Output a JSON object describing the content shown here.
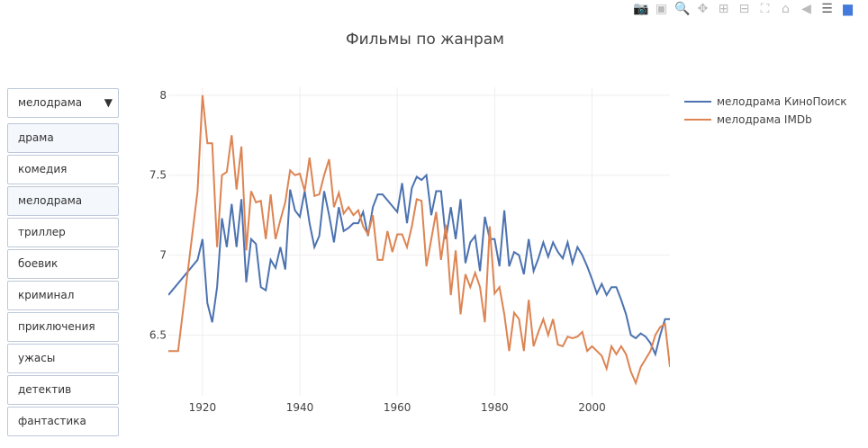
{
  "modebar": {
    "icons": [
      "camera-icon",
      "save-icon",
      "zoom-icon",
      "pan-icon",
      "zoom-in-icon",
      "zoom-out-icon",
      "autoscale-icon",
      "home-icon",
      "spike-lines-icon",
      "compare-hover-icon",
      "plotly-logo-icon"
    ]
  },
  "dropdown": {
    "selected": "мелодрама",
    "items": [
      {
        "label": "драма",
        "active": true
      },
      {
        "label": "комедия",
        "active": false
      },
      {
        "label": "мелодрама",
        "active": true
      },
      {
        "label": "триллер",
        "active": false
      },
      {
        "label": "боевик",
        "active": false
      },
      {
        "label": "криминал",
        "active": false
      },
      {
        "label": "приключения",
        "active": false
      },
      {
        "label": "ужасы",
        "active": false
      },
      {
        "label": "детектив",
        "active": false
      },
      {
        "label": "фантастика",
        "active": false
      }
    ]
  },
  "chart_data": {
    "type": "line",
    "title": "Фильмы по жанрам",
    "xlim": [
      1913,
      2016
    ],
    "ylim": [
      6.12,
      8.05
    ],
    "xticks": [
      1920,
      1940,
      1960,
      1980,
      2000
    ],
    "yticks": [
      6.5,
      7,
      7.5,
      8
    ],
    "grid": true,
    "legend_position": "top-right",
    "series": [
      {
        "name": "мелодрама КиноПоиск",
        "color": "#4C72B0",
        "x": [
          1913,
          1919,
          1920,
          1921,
          1922,
          1923,
          1924,
          1925,
          1926,
          1927,
          1928,
          1929,
          1930,
          1931,
          1932,
          1933,
          1934,
          1935,
          1936,
          1937,
          1938,
          1939,
          1940,
          1941,
          1942,
          1943,
          1944,
          1945,
          1946,
          1947,
          1948,
          1949,
          1950,
          1951,
          1952,
          1953,
          1954,
          1955,
          1956,
          1957,
          1960,
          1961,
          1962,
          1963,
          1964,
          1965,
          1966,
          1967,
          1968,
          1969,
          1970,
          1971,
          1972,
          1973,
          1974,
          1975,
          1976,
          1977,
          1978,
          1979,
          1980,
          1981,
          1982,
          1983,
          1984,
          1985,
          1986,
          1987,
          1988,
          1989,
          1990,
          1991,
          1992,
          1993,
          1994,
          1995,
          1996,
          1997,
          1998,
          1999,
          2000,
          2001,
          2002,
          2003,
          2004,
          2005,
          2006,
          2007,
          2008,
          2009,
          2010,
          2011,
          2012,
          2013,
          2014,
          2015,
          2016
        ],
        "y": [
          6.75,
          6.97,
          7.1,
          6.7,
          6.58,
          6.8,
          7.23,
          7.05,
          7.32,
          7.05,
          7.35,
          6.83,
          7.1,
          7.07,
          6.8,
          6.78,
          6.97,
          6.92,
          7.05,
          6.91,
          7.41,
          7.28,
          7.24,
          7.4,
          7.2,
          7.05,
          7.12,
          7.4,
          7.25,
          7.08,
          7.3,
          7.15,
          7.17,
          7.2,
          7.2,
          7.27,
          7.12,
          7.3,
          7.38,
          7.38,
          7.27,
          7.45,
          7.2,
          7.42,
          7.49,
          7.47,
          7.5,
          7.25,
          7.4,
          7.4,
          7.1,
          7.3,
          7.1,
          7.35,
          6.95,
          7.08,
          7.12,
          6.9,
          7.24,
          7.1,
          7.1,
          6.93,
          7.28,
          6.93,
          7.02,
          7.0,
          6.88,
          7.1,
          6.9,
          6.98,
          7.08,
          6.99,
          7.08,
          7.02,
          6.98,
          7.08,
          6.95,
          7.05,
          7.0,
          6.93,
          6.85,
          6.76,
          6.82,
          6.75,
          6.8,
          6.8,
          6.72,
          6.63,
          6.5,
          6.48,
          6.51,
          6.49,
          6.45,
          6.38,
          6.5,
          6.6,
          6.6
        ]
      },
      {
        "name": "мелодрама IMDb",
        "color": "#DD8452",
        "x": [
          1913,
          1915,
          1919,
          1920,
          1921,
          1922,
          1923,
          1924,
          1925,
          1926,
          1927,
          1928,
          1929,
          1930,
          1931,
          1932,
          1933,
          1934,
          1935,
          1936,
          1937,
          1938,
          1939,
          1940,
          1941,
          1942,
          1943,
          1944,
          1945,
          1946,
          1947,
          1948,
          1949,
          1950,
          1951,
          1952,
          1953,
          1954,
          1955,
          1956,
          1957,
          1958,
          1959,
          1960,
          1961,
          1962,
          1963,
          1964,
          1965,
          1966,
          1967,
          1968,
          1969,
          1970,
          1971,
          1972,
          1973,
          1974,
          1975,
          1976,
          1977,
          1978,
          1979,
          1980,
          1981,
          1982,
          1983,
          1984,
          1985,
          1986,
          1987,
          1988,
          1989,
          1990,
          1991,
          1992,
          1993,
          1994,
          1995,
          1996,
          1997,
          1998,
          1999,
          2000,
          2001,
          2002,
          2003,
          2004,
          2005,
          2006,
          2007,
          2008,
          2009,
          2010,
          2011,
          2012,
          2013,
          2014,
          2015,
          2016
        ],
        "y": [
          6.4,
          6.4,
          7.4,
          8.0,
          7.7,
          7.7,
          7.05,
          7.5,
          7.52,
          7.75,
          7.41,
          7.68,
          7.03,
          7.4,
          7.33,
          7.34,
          7.1,
          7.38,
          7.1,
          7.22,
          7.33,
          7.53,
          7.5,
          7.51,
          7.4,
          7.61,
          7.37,
          7.38,
          7.5,
          7.6,
          7.3,
          7.39,
          7.26,
          7.3,
          7.25,
          7.28,
          7.18,
          7.13,
          7.25,
          6.97,
          6.97,
          7.15,
          7.02,
          7.13,
          7.13,
          7.05,
          7.18,
          7.35,
          7.34,
          6.93,
          7.1,
          7.27,
          6.97,
          7.19,
          6.75,
          7.03,
          6.63,
          6.88,
          6.8,
          6.89,
          6.8,
          6.58,
          7.18,
          6.76,
          6.8,
          6.63,
          6.4,
          6.64,
          6.6,
          6.4,
          6.72,
          6.43,
          6.52,
          6.6,
          6.5,
          6.6,
          6.44,
          6.43,
          6.49,
          6.48,
          6.49,
          6.52,
          6.4,
          6.43,
          6.4,
          6.37,
          6.29,
          6.43,
          6.38,
          6.43,
          6.38,
          6.27,
          6.2,
          6.3,
          6.35,
          6.4,
          6.5,
          6.55,
          6.57,
          6.3
        ]
      }
    ]
  }
}
